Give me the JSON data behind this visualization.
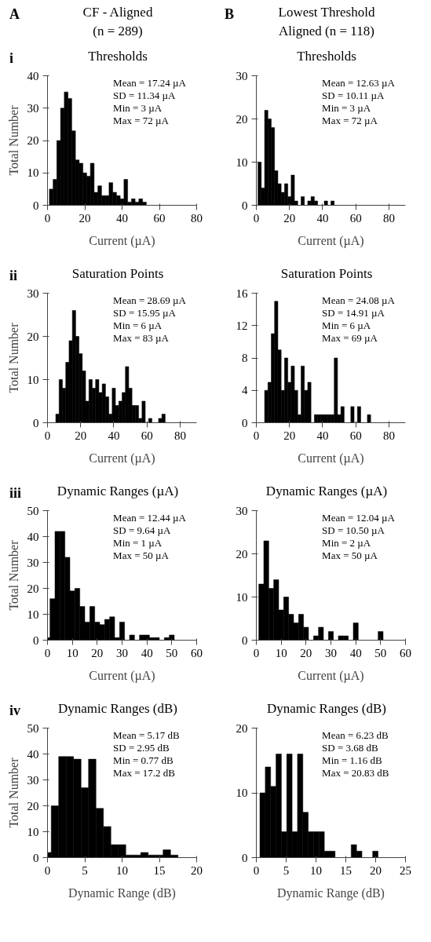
{
  "chart_data": [
    {
      "type": "histogram",
      "title": "Thresholds",
      "xlabel": "Current (µA)",
      "ylabel": "Total Number",
      "annotations": [
        "A",
        "CF - Aligned",
        "(n = 289)",
        "i",
        "Mean = 17.24 µA",
        "SD = 11.34 µA",
        "Min = 3 µA",
        "Max = 72 µA"
      ],
      "bins": [
        1,
        3,
        5,
        7,
        9,
        11,
        13,
        15,
        17,
        19,
        21,
        23,
        25,
        27,
        29,
        31,
        33,
        35,
        37,
        39,
        41,
        43,
        45,
        47,
        49,
        51,
        53
      ],
      "values": [
        5,
        8,
        20,
        30,
        35,
        33,
        23,
        14,
        13,
        10,
        9,
        13,
        4,
        6,
        3,
        3,
        7,
        4,
        3,
        2,
        8,
        1,
        2,
        1,
        2,
        1
      ],
      "color": "#000000",
      "xlim": [
        0,
        80
      ],
      "xticks": [
        0,
        20,
        40,
        60,
        80
      ],
      "ylim": [
        0,
        40
      ],
      "yticks": [
        0,
        10,
        20,
        30,
        40
      ]
    },
    {
      "type": "histogram",
      "title": "Thresholds",
      "xlabel": "Current (µA)",
      "annotations": [
        "B",
        "Lowest Threshold",
        "Aligned (n = 118)",
        "Mean = 12.63 µA",
        "SD = 10.11 µA",
        "Min = 3 µA",
        "Max = 72 µA"
      ],
      "bins": [
        1,
        3,
        5,
        7,
        9,
        11,
        13,
        15,
        17,
        19,
        21,
        23,
        25,
        27,
        29,
        31,
        33,
        35,
        37,
        39,
        41,
        43,
        45,
        47
      ],
      "values": [
        10,
        4,
        22,
        20,
        18,
        8,
        5,
        3,
        5,
        2,
        7,
        1,
        0,
        2,
        0,
        1,
        2,
        1,
        0,
        0,
        1,
        0,
        1
      ],
      "color": "#000000",
      "xlim": [
        0,
        90
      ],
      "xticks": [
        0,
        20,
        40,
        60,
        80
      ],
      "ylim": [
        0,
        30
      ],
      "yticks": [
        0,
        10,
        20,
        30
      ]
    },
    {
      "type": "histogram",
      "title": "Saturation Points",
      "xlabel": "Current (µA)",
      "ylabel": "Total Number",
      "annotations": [
        "ii",
        "Mean = 28.69 µA",
        "SD = 15.95 µA",
        "Min = 6 µA",
        "Max = 83 µA"
      ],
      "bins": [
        5,
        7,
        9,
        11,
        13,
        15,
        17,
        19,
        21,
        23,
        25,
        27,
        29,
        31,
        33,
        35,
        37,
        39,
        41,
        43,
        45,
        47,
        49,
        51,
        53,
        55,
        57,
        59,
        61,
        63,
        65,
        67,
        69,
        71
      ],
      "values": [
        2,
        10,
        8,
        14,
        19,
        26,
        20,
        16,
        12,
        5,
        10,
        8,
        10,
        7,
        9,
        6,
        2,
        8,
        4,
        5,
        7,
        13,
        8,
        4,
        4,
        1,
        5,
        0,
        1,
        0,
        0,
        1,
        2
      ],
      "color": "#000000",
      "xlim": [
        0,
        90
      ],
      "xticks": [
        0,
        20,
        40,
        60,
        80
      ],
      "ylim": [
        0,
        30
      ],
      "yticks": [
        0,
        10,
        20,
        30
      ]
    },
    {
      "type": "histogram",
      "title": "Saturation Points",
      "xlabel": "Current (µA)",
      "annotations": [
        "Mean = 24.08 µA",
        "SD = 14.91 µA",
        "Min = 6 µA",
        "Max = 69 µA"
      ],
      "bins": [
        5,
        7,
        9,
        11,
        13,
        15,
        17,
        19,
        21,
        23,
        25,
        27,
        29,
        31,
        33,
        35,
        37,
        39,
        41,
        43,
        45,
        47,
        49,
        51,
        53,
        55,
        57,
        59,
        61,
        63,
        65,
        67,
        69
      ],
      "values": [
        4,
        5,
        11,
        15,
        9,
        4,
        8,
        5,
        7,
        4,
        1,
        7,
        4,
        5,
        0,
        1,
        1,
        1,
        1,
        1,
        1,
        8,
        1,
        2,
        0,
        0,
        2,
        0,
        2,
        0,
        0,
        1
      ],
      "color": "#000000",
      "xlim": [
        0,
        90
      ],
      "xticks": [
        0,
        20,
        40,
        60,
        80
      ],
      "ylim": [
        0,
        16
      ],
      "yticks": [
        0,
        4,
        8,
        12,
        16
      ]
    },
    {
      "type": "histogram",
      "title": "Dynamic Ranges (µA)",
      "xlabel": "Current (µA)",
      "ylabel": "Total Number",
      "annotations": [
        "iii",
        "Mean = 12.44 µA",
        "SD = 9.64 µA",
        "Min = 1 µA",
        "Max = 50 µA"
      ],
      "bins": [
        0,
        1,
        3,
        5,
        7,
        9,
        11,
        13,
        15,
        17,
        19,
        21,
        23,
        25,
        27,
        29,
        31,
        33,
        35,
        37,
        39,
        41,
        43,
        45,
        47,
        49,
        51
      ],
      "values": [
        1,
        16,
        42,
        42,
        32,
        19,
        20,
        13,
        7,
        13,
        7,
        6,
        8,
        9,
        1,
        7,
        0,
        2,
        0,
        2,
        2,
        1,
        1,
        0,
        1,
        2
      ],
      "color": "#000000",
      "xlim": [
        0,
        60
      ],
      "xticks": [
        0,
        10,
        20,
        30,
        40,
        50,
        60
      ],
      "ylim": [
        0,
        50
      ],
      "yticks": [
        0,
        10,
        20,
        30,
        40,
        50
      ]
    },
    {
      "type": "histogram",
      "title": "Dynamic Ranges (µA)",
      "xlabel": "Current (µA)",
      "annotations": [
        "Mean = 12.04 µA",
        "SD = 10.50 µA",
        "Min = 2 µA",
        "Max = 50 µA"
      ],
      "bins": [
        1,
        3,
        5,
        7,
        9,
        11,
        13,
        15,
        17,
        19,
        21,
        23,
        25,
        27,
        29,
        31,
        33,
        35,
        37,
        39,
        41,
        43,
        45,
        47,
        49,
        51
      ],
      "values": [
        13,
        23,
        12,
        14,
        7,
        10,
        6,
        4,
        6,
        3,
        0,
        1,
        3,
        0,
        2,
        0,
        1,
        1,
        0,
        4,
        0,
        0,
        0,
        0,
        2
      ],
      "color": "#000000",
      "xlim": [
        0,
        60
      ],
      "xticks": [
        0,
        10,
        20,
        30,
        40,
        50,
        60
      ],
      "ylim": [
        0,
        30
      ],
      "yticks": [
        0,
        10,
        20,
        30
      ]
    },
    {
      "type": "histogram",
      "title": "Dynamic Ranges (dB)",
      "xlabel": "Dynamic Range (dB)",
      "ylabel": "Total Number",
      "annotations": [
        "iv",
        "Mean = 5.17 dB",
        "SD = 2.95 dB",
        "Min = 0.77 dB",
        "Max = 17.2 dB"
      ],
      "bins": [
        0,
        0.5,
        1.5,
        2.5,
        3.5,
        4.5,
        5.5,
        6.5,
        7.5,
        8.5,
        9.5,
        10.5,
        11.5,
        12.5,
        13.5,
        14.5,
        15.5,
        16.5,
        17.5
      ],
      "values": [
        2,
        20,
        39,
        39,
        38,
        27,
        38,
        19,
        12,
        5,
        5,
        1,
        1,
        2,
        1,
        1,
        3,
        1
      ],
      "color": "#000000",
      "xlim": [
        0,
        20
      ],
      "xticks": [
        0,
        5,
        10,
        15,
        20
      ],
      "ylim": [
        0,
        50
      ],
      "yticks": [
        0,
        10,
        20,
        30,
        40,
        50
      ]
    },
    {
      "type": "histogram",
      "title": "Dynamic Ranges (dB)",
      "xlabel": "Dynamic Range (dB)",
      "annotations": [
        "Mean = 6.23 dB",
        "SD = 3.68 dB",
        "Min = 1.16 dB",
        "Max = 20.83 dB"
      ],
      "bins": [
        0.6,
        1.5,
        2.4,
        3.3,
        4.2,
        5.1,
        6.0,
        6.9,
        7.8,
        8.7,
        9.6,
        10.5,
        11.4,
        12.3,
        13.2,
        14.1,
        15.0,
        15.9,
        16.8,
        17.7,
        18.6,
        19.5,
        20.4
      ],
      "values": [
        10,
        14,
        11,
        16,
        4,
        16,
        4,
        16,
        7,
        4,
        4,
        4,
        1,
        1,
        0,
        0,
        0,
        2,
        1,
        0,
        0,
        1
      ],
      "color": "#000000",
      "xlim": [
        0,
        25
      ],
      "xticks": [
        0,
        5,
        10,
        15,
        20,
        25
      ],
      "ylim": [
        0,
        20
      ],
      "yticks": [
        0,
        10,
        20
      ]
    }
  ]
}
